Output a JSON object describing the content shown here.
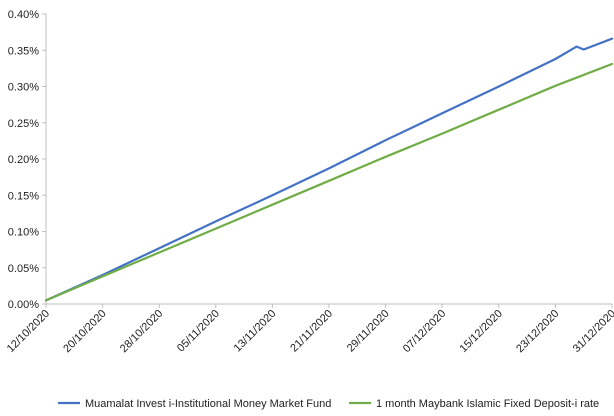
{
  "chart_data": {
    "type": "line",
    "title": "",
    "xlabel": "",
    "ylabel": "",
    "x_ticks": [
      "12/10/2020",
      "20/10/2020",
      "28/10/2020",
      "05/11/2020",
      "13/11/2020",
      "21/11/2020",
      "29/11/2020",
      "07/12/2020",
      "15/12/2020",
      "23/12/2020",
      "31/12/2020"
    ],
    "y_ticks": [
      "0.00%",
      "0.05%",
      "0.10%",
      "0.15%",
      "0.20%",
      "0.25%",
      "0.30%",
      "0.35%",
      "0.40%"
    ],
    "ylim": [
      0,
      0.4
    ],
    "y_unit": "%",
    "grid": false,
    "legend_position": "bottom",
    "series": [
      {
        "name": "Muamalat Invest i-Institutional Money Market Fund",
        "color": "#4472C4",
        "points": [
          [
            "12/10/2020",
            0.005
          ],
          [
            "20/10/2020",
            0.04
          ],
          [
            "28/10/2020",
            0.077
          ],
          [
            "05/11/2020",
            0.114
          ],
          [
            "13/11/2020",
            0.15
          ],
          [
            "21/11/2020",
            0.187
          ],
          [
            "29/11/2020",
            0.226
          ],
          [
            "07/12/2020",
            0.263
          ],
          [
            "15/12/2020",
            0.3
          ],
          [
            "23/12/2020",
            0.338
          ],
          [
            "26/12/2020",
            0.355
          ],
          [
            "27/12/2020",
            0.351
          ],
          [
            "31/12/2020",
            0.366
          ]
        ]
      },
      {
        "name": "1 month Maybank Islamic Fixed Deposit-i rate",
        "color": "#70AD47",
        "points": [
          [
            "12/10/2020",
            0.005
          ],
          [
            "20/10/2020",
            0.038
          ],
          [
            "28/10/2020",
            0.071
          ],
          [
            "05/11/2020",
            0.104
          ],
          [
            "13/11/2020",
            0.137
          ],
          [
            "21/11/2020",
            0.17
          ],
          [
            "29/11/2020",
            0.203
          ],
          [
            "07/12/2020",
            0.235
          ],
          [
            "15/12/2020",
            0.268
          ],
          [
            "23/12/2020",
            0.301
          ],
          [
            "31/12/2020",
            0.331
          ]
        ]
      }
    ]
  }
}
